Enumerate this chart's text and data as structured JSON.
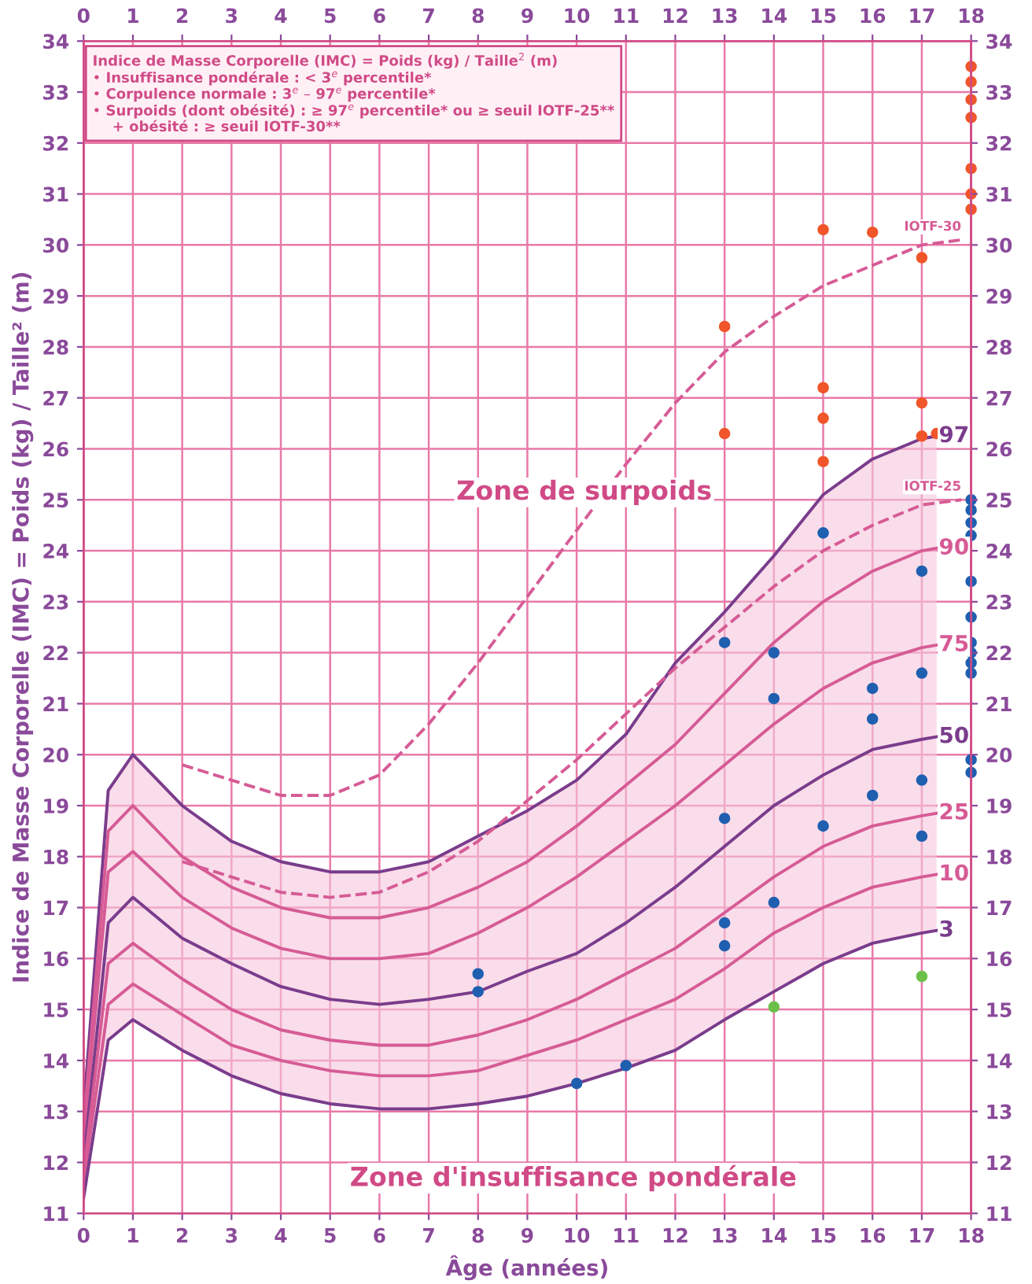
{
  "chart_data": {
    "type": "line",
    "xlabel": "Âge (années)",
    "ylabel": "Indice de Masse Corporelle (IMC) = Poids (kg) / Taille² (m)",
    "xlim": [
      0,
      18
    ],
    "xticks": [
      0,
      1,
      2,
      3,
      4,
      5,
      6,
      7,
      8,
      9,
      10,
      11,
      12,
      13,
      14,
      15,
      16,
      17,
      18
    ],
    "x2lim": [
      0,
      18
    ],
    "x2ticks": [
      0,
      1,
      2,
      3,
      4,
      5,
      6,
      7,
      8,
      9,
      10,
      11,
      12,
      13,
      14,
      15,
      16,
      17,
      18
    ],
    "ylim": [
      11,
      34
    ],
    "yticks": [
      11,
      12,
      13,
      14,
      15,
      16,
      17,
      18,
      19,
      20,
      21,
      22,
      23,
      24,
      25,
      26,
      27,
      28,
      29,
      30,
      31,
      32,
      33,
      34
    ],
    "y2lim": [
      11,
      34
    ],
    "y2ticks": [
      11,
      12,
      13,
      14,
      15,
      16,
      17,
      18,
      19,
      20,
      21,
      22,
      23,
      24,
      25,
      26,
      27,
      28,
      29,
      30,
      31,
      32,
      33,
      34
    ],
    "grid": true,
    "legend": false,
    "annotations": [
      "Indice de Masse Corporelle (IMC) = Poids (kg) / Taille$^{2}$ (m)\n• Insuffisance pondérale : < 3$^{e}$ percentile*\n• Corpulence normale : 3$^{e}$ – 97$^{e}$ percentile*\n• Surpoids (dont obésité) : ≥ 97$^{e}$ percentile* ou ≥ seuil IOTF-25**\n    + obésité : ≥ seuil IOTF-30**",
      "Zone de surpoids",
      "Zone d'insuffisance pondérale"
    ],
    "series": [
      {
        "name": "97",
        "color": "#7a3c8c",
        "line_style": "solid",
        "marker": "none",
        "x": [
          0,
          0.5,
          1,
          2,
          3,
          4,
          5,
          6,
          7,
          8,
          9,
          10,
          11,
          12,
          13,
          14,
          15,
          16,
          17,
          17.3
        ],
        "values": [
          13.0,
          19.3,
          20.0,
          19.0,
          18.3,
          17.9,
          17.7,
          17.7,
          17.9,
          18.4,
          18.9,
          19.5,
          20.4,
          21.8,
          22.8,
          23.9,
          25.1,
          25.8,
          26.2,
          26.25
        ]
      },
      {
        "name": "90",
        "color": "#d65b95",
        "line_style": "solid",
        "marker": "none",
        "x": [
          0,
          0.5,
          1,
          2,
          3,
          4,
          5,
          6,
          7,
          8,
          9,
          10,
          11,
          12,
          13,
          14,
          15,
          16,
          17,
          17.3
        ],
        "values": [
          12.7,
          18.5,
          19.0,
          18.0,
          17.4,
          17.0,
          16.8,
          16.8,
          17.0,
          17.4,
          17.9,
          18.6,
          19.4,
          20.2,
          21.2,
          22.2,
          23.0,
          23.6,
          24.0,
          24.05
        ]
      },
      {
        "name": "75",
        "color": "#d65b95",
        "line_style": "solid",
        "marker": "none",
        "x": [
          0,
          0.5,
          1,
          2,
          3,
          4,
          5,
          6,
          7,
          8,
          9,
          10,
          11,
          12,
          13,
          14,
          15,
          16,
          17,
          17.3
        ],
        "values": [
          12.4,
          17.7,
          18.1,
          17.2,
          16.6,
          16.2,
          16.0,
          16.0,
          16.1,
          16.5,
          17.0,
          17.6,
          18.3,
          19.0,
          19.8,
          20.6,
          21.3,
          21.8,
          22.1,
          22.15
        ]
      },
      {
        "name": "50",
        "color": "#7a3c8c",
        "line_style": "solid",
        "marker": "none",
        "x": [
          0,
          0.5,
          1,
          2,
          3,
          4,
          5,
          6,
          7,
          8,
          9,
          10,
          11,
          12,
          13,
          14,
          15,
          16,
          17,
          17.3
        ],
        "values": [
          12.0,
          16.7,
          17.2,
          16.4,
          15.9,
          15.45,
          15.2,
          15.1,
          15.2,
          15.35,
          15.75,
          16.1,
          16.7,
          17.4,
          18.2,
          19.0,
          19.6,
          20.1,
          20.3,
          20.35
        ],
        "lower": [
          11.3,
          14.4,
          14.8,
          14.2,
          13.7,
          13.35,
          13.15,
          13.05,
          13.05,
          13.15,
          13.3,
          13.55,
          13.85,
          14.2,
          14.8,
          15.35,
          15.9,
          16.3,
          16.5,
          16.55
        ],
        "upper": [
          13.0,
          19.3,
          20.0,
          19.0,
          18.3,
          17.9,
          17.7,
          17.7,
          17.9,
          18.4,
          18.9,
          19.5,
          20.4,
          21.8,
          22.8,
          23.9,
          25.1,
          25.8,
          26.2,
          26.25
        ]
      },
      {
        "name": "25",
        "color": "#d65b95",
        "line_style": "solid",
        "marker": "none",
        "x": [
          0,
          0.5,
          1,
          2,
          3,
          4,
          5,
          6,
          7,
          8,
          9,
          10,
          11,
          12,
          13,
          14,
          15,
          16,
          17,
          17.3
        ],
        "values": [
          11.8,
          15.9,
          16.3,
          15.6,
          15.0,
          14.6,
          14.4,
          14.3,
          14.3,
          14.5,
          14.8,
          15.2,
          15.7,
          16.2,
          16.9,
          17.6,
          18.2,
          18.6,
          18.8,
          18.85
        ]
      },
      {
        "name": "10",
        "color": "#d65b95",
        "line_style": "solid",
        "marker": "none",
        "x": [
          0,
          0.5,
          1,
          2,
          3,
          4,
          5,
          6,
          7,
          8,
          9,
          10,
          11,
          12,
          13,
          14,
          15,
          16,
          17,
          17.3
        ],
        "values": [
          11.6,
          15.1,
          15.5,
          14.9,
          14.3,
          14.0,
          13.8,
          13.7,
          13.7,
          13.8,
          14.1,
          14.4,
          14.8,
          15.2,
          15.8,
          16.5,
          17.0,
          17.4,
          17.6,
          17.65
        ]
      },
      {
        "name": "3",
        "color": "#7a3c8c",
        "line_style": "solid",
        "marker": "none",
        "x": [
          0,
          0.5,
          1,
          2,
          3,
          4,
          5,
          6,
          7,
          8,
          9,
          10,
          11,
          12,
          13,
          14,
          15,
          16,
          17,
          17.3
        ],
        "values": [
          11.3,
          14.4,
          14.8,
          14.2,
          13.7,
          13.35,
          13.15,
          13.05,
          13.05,
          13.15,
          13.3,
          13.55,
          13.85,
          14.2,
          14.8,
          15.35,
          15.9,
          16.3,
          16.5,
          16.55
        ]
      },
      {
        "name": "IOTF-25",
        "color": "#d65b95",
        "line_style": "dashed",
        "marker": "none",
        "x": [
          2,
          3,
          4,
          5,
          6,
          7,
          8,
          9,
          10,
          11,
          12,
          13,
          14,
          15,
          16,
          17,
          17.8
        ],
        "values": [
          17.9,
          17.6,
          17.3,
          17.2,
          17.3,
          17.7,
          18.3,
          19.1,
          19.9,
          20.8,
          21.7,
          22.5,
          23.3,
          24.0,
          24.5,
          24.9,
          25.0
        ]
      },
      {
        "name": "IOTF-30",
        "color": "#d65b95",
        "line_style": "dashed",
        "marker": "none",
        "x": [
          2,
          3,
          4,
          5,
          6,
          7,
          8,
          9,
          10,
          11,
          12,
          13,
          14,
          15,
          16,
          17,
          17.8
        ],
        "values": [
          19.8,
          19.5,
          19.2,
          19.2,
          19.6,
          20.6,
          21.8,
          23.1,
          24.4,
          25.7,
          26.9,
          27.9,
          28.6,
          29.2,
          29.6,
          30.0,
          30.1
        ]
      },
      {
        "type": "scatter",
        "color": "#f0562a",
        "marker": "circle",
        "x": [
          18,
          18,
          18,
          18,
          18,
          18,
          18,
          15,
          16,
          17,
          13,
          15,
          17,
          15,
          13,
          17,
          17.3,
          15
        ],
        "values": [
          33.5,
          33.2,
          32.85,
          32.5,
          31.5,
          31.0,
          30.7,
          30.3,
          30.25,
          29.75,
          28.4,
          27.2,
          26.9,
          26.6,
          26.3,
          26.25,
          26.3,
          25.75
        ]
      },
      {
        "type": "scatter",
        "color": "#1f5fb0",
        "marker": "circle",
        "x": [
          18,
          18,
          18,
          18,
          15,
          17,
          18,
          18,
          13,
          14,
          18,
          18,
          18,
          18,
          17,
          14,
          16,
          16,
          18,
          18,
          17,
          16,
          13,
          15,
          17,
          14,
          13,
          13,
          8,
          8,
          10,
          11
        ],
        "values": [
          25.0,
          24.8,
          24.55,
          24.3,
          24.35,
          23.6,
          23.4,
          22.7,
          22.2,
          22.0,
          22.2,
          22.0,
          21.8,
          21.6,
          21.6,
          21.1,
          21.3,
          20.7,
          19.9,
          19.65,
          19.5,
          19.2,
          18.75,
          18.6,
          18.4,
          17.1,
          16.7,
          16.25,
          15.7,
          15.35,
          13.55,
          13.9
        ]
      },
      {
        "type": "scatter",
        "color": "#6cc04a",
        "marker": "circle",
        "x": [
          14,
          17
        ],
        "values": [
          15.05,
          15.65
        ]
      }
    ]
  }
}
